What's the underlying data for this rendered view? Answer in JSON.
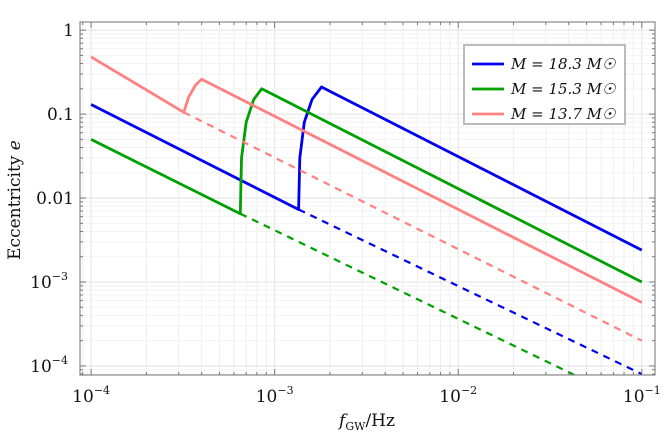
{
  "chart_data": {
    "type": "line",
    "xscale": "log",
    "yscale": "log",
    "xlabel": "f_GW/Hz",
    "xlabel_main": "f",
    "xlabel_sub": "GW",
    "xlabel_unit": "/Hz",
    "ylabel": "Eccentricity e",
    "ylabel_main": "Eccentricity ",
    "ylabel_var": "e",
    "xlim": [
      8.7e-05,
      0.118
    ],
    "ylim": [
      7.8e-05,
      1.25
    ],
    "grid": true,
    "legend_position": "top-right",
    "x_ticks": [
      {
        "value": 0.0001,
        "base": "10",
        "exp": "−4"
      },
      {
        "value": 0.001,
        "base": "10",
        "exp": "−3"
      },
      {
        "value": 0.01,
        "base": "10",
        "exp": "−2"
      },
      {
        "value": 0.1,
        "base": "10",
        "exp": "−1"
      }
    ],
    "y_ticks": [
      {
        "value": 1,
        "base": "1",
        "exp": ""
      },
      {
        "value": 0.1,
        "base": "0.1",
        "exp": ""
      },
      {
        "value": 0.01,
        "base": "0.01",
        "exp": ""
      },
      {
        "value": 0.001,
        "base": "10",
        "exp": "−3"
      },
      {
        "value": 0.0001,
        "base": "10",
        "exp": "−4"
      }
    ],
    "series": [
      {
        "name": "M = 18.3 M☉",
        "color": "#0000ee",
        "solid": [
          [
            0.0001,
            0.13
          ],
          [
            0.00135,
            0.0073
          ],
          [
            0.00137,
            0.03
          ],
          [
            0.00145,
            0.08
          ],
          [
            0.0016,
            0.15
          ],
          [
            0.0018,
            0.21
          ],
          [
            0.1,
            0.0024
          ]
        ],
        "dashed": [
          [
            0.00135,
            0.0073
          ],
          [
            0.1,
            8e-05
          ]
        ]
      },
      {
        "name": "M = 15.3 M☉",
        "color": "#00a000",
        "solid": [
          [
            0.0001,
            0.05
          ],
          [
            0.00065,
            0.0065
          ],
          [
            0.00066,
            0.03
          ],
          [
            0.0007,
            0.08
          ],
          [
            0.00077,
            0.15
          ],
          [
            0.00085,
            0.2
          ],
          [
            0.1,
            0.001
          ]
        ],
        "dashed": [
          [
            0.00065,
            0.0065
          ],
          [
            0.043,
            7.8e-05
          ]
        ]
      },
      {
        "name": "M = 13.7 M☉",
        "color": "#ff8080",
        "solid": [
          [
            0.0001,
            0.48
          ],
          [
            0.00032,
            0.105
          ],
          [
            0.00034,
            0.16
          ],
          [
            0.00037,
            0.22
          ],
          [
            0.0004,
            0.26
          ],
          [
            0.1,
            0.00057
          ]
        ],
        "dashed": [
          [
            0.00032,
            0.105
          ],
          [
            0.1,
            0.0002
          ]
        ]
      }
    ]
  }
}
